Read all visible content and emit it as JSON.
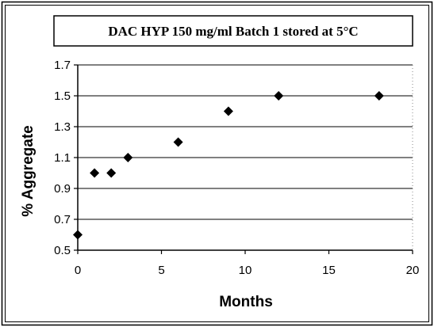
{
  "chart_data": {
    "type": "scatter",
    "title": "DAC HYP 150 mg/ml Batch 1 stored at 5°C",
    "xlabel": "Months",
    "ylabel": "% Aggregate",
    "xlim": [
      0,
      20
    ],
    "ylim": [
      0.5,
      1.7
    ],
    "xticks": [
      0,
      5,
      10,
      15,
      20
    ],
    "xtick_labels": [
      "0",
      "5",
      "10",
      "15",
      "20"
    ],
    "yticks": [
      0.5,
      0.7,
      0.9,
      1.1,
      1.3,
      1.5,
      1.7
    ],
    "ytick_labels": [
      "0.5",
      "0.7",
      "0.9",
      "1.1",
      "1.3",
      "1.5",
      "1.7"
    ],
    "grid": "horizontal",
    "marker": "diamond",
    "color": "#000000",
    "series": [
      {
        "x": [
          0,
          1,
          2,
          3,
          6,
          9,
          12,
          18
        ],
        "y": [
          0.6,
          1.0,
          1.0,
          1.1,
          1.2,
          1.4,
          1.5,
          1.5
        ]
      }
    ]
  }
}
